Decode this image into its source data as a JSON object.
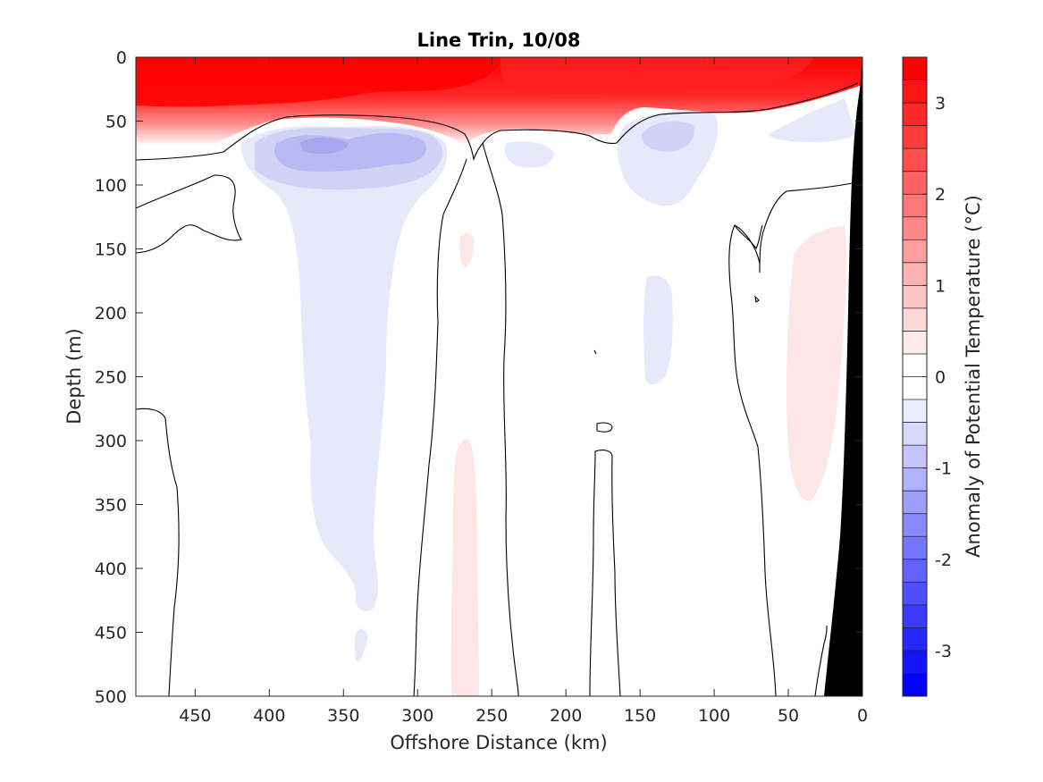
{
  "chart_data": {
    "type": "heatmap",
    "title": "Line Trin, 10/08",
    "xlabel": "Offshore Distance (km)",
    "ylabel": "Depth (m)",
    "colorbar_label": "Anomaly of Potential Temperature (°C)",
    "xlim": [
      490,
      0
    ],
    "ylim": [
      0,
      500
    ],
    "x_reversed": true,
    "y_reversed": true,
    "x_ticks": [
      450,
      400,
      350,
      300,
      250,
      200,
      150,
      100,
      50,
      0
    ],
    "y_ticks": [
      0,
      50,
      100,
      150,
      200,
      250,
      300,
      350,
      400,
      450,
      500
    ],
    "colorbar_range": [
      -3.5,
      3.5
    ],
    "colorbar_step": 0.25,
    "colorbar_ticks": [
      3,
      2,
      1,
      0,
      -1,
      -2,
      -3
    ],
    "colormap": {
      "negative": "#0000ff",
      "zero": "#ffffff",
      "positive": "#ff0000"
    },
    "zero_contour_color": "#000000",
    "bathymetry_color": "#000000",
    "features": [
      {
        "kind": "warm_surface_layer",
        "x_range": [
          490,
          0
        ],
        "depth_range": [
          0,
          60
        ],
        "max_anomaly": 3.2
      },
      {
        "kind": "cold_core",
        "center_x": 340,
        "center_depth": 70,
        "min_anomaly": -0.9
      },
      {
        "kind": "cold_plume",
        "x_range": [
          390,
          300
        ],
        "depth_range": [
          80,
          480
        ],
        "anomaly": -0.25
      },
      {
        "kind": "cold_core",
        "center_x": 130,
        "center_depth": 60,
        "min_anomaly": -0.5
      },
      {
        "kind": "warm_patch",
        "x_range": [
          285,
          255
        ],
        "depth_range": [
          290,
          500
        ],
        "anomaly": 0.2
      },
      {
        "kind": "warm_patch",
        "x_range": [
          60,
          20
        ],
        "depth_range": [
          130,
          350
        ],
        "anomaly": 0.2
      }
    ]
  }
}
